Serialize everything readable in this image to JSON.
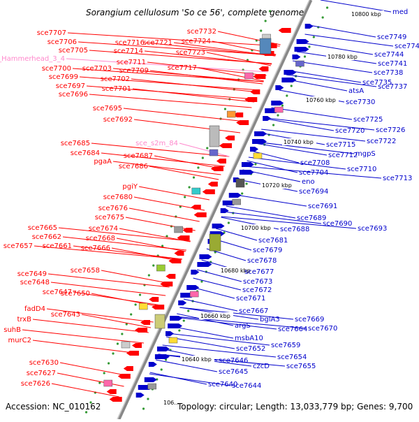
{
  "header": {
    "title": "Sorangium cellulosum 'So ce 56', complete genome"
  },
  "footer": {
    "accession": "Accession: NC_010162",
    "summary": "Topology: circular; Length: 13,033,779 bp; Genes: 9,700"
  },
  "colors": {
    "reverse_strand": "#ff0000",
    "forward_strand": "#0000cc",
    "rna": "#ff88cc",
    "backbone": "#888888"
  },
  "kbp_labels": [
    "10800 kbp",
    "10780 kbp",
    "10760 kbp",
    "10740 kbp",
    "10720 kbp",
    "10700 kbp",
    "10680 kbp",
    "10660 kbp",
    "10640 kbp",
    "106..."
  ],
  "left_genes": [
    "sce7707",
    "sce7706",
    "sce7705",
    "sce_Hammerhead_3_4",
    "sce7700",
    "sce7699",
    "sce7697",
    "sce7696",
    "sce7716",
    "sce7721",
    "sce7714",
    "sce7711",
    "sce7709",
    "sce7703",
    "sce7702",
    "sce7701",
    "sce7732",
    "sce7724",
    "sce7723",
    "sce7717",
    "sce7695",
    "sce7692",
    "sce7685",
    "sce7684",
    "pgaA",
    "sce_s2m_84",
    "sce7687",
    "sce7686",
    "pgiY",
    "sce7680",
    "sce7676",
    "sce7675",
    "sce7674",
    "sce7665",
    "sce7662",
    "sce7661",
    "sce7657",
    "sce7668",
    "sce7666",
    "sce7658",
    "sce7649",
    "sce7648",
    "sce7647",
    "sce7650",
    "fadD4",
    "sce7643",
    "trxB",
    "suhB",
    "murC2",
    "sce7630",
    "sce7627",
    "sce7626"
  ],
  "right_genes": [
    "med",
    "sce7749",
    "sce7748",
    "sce7744",
    "sce7741",
    "sce7738",
    "sce7735",
    "sce7737",
    "atsA",
    "sce7730",
    "sce7725",
    "sce7726",
    "sce7720",
    "sce7722",
    "sce7715",
    "mgpS",
    "sce7712",
    "sce7708",
    "sce7710",
    "sce7704",
    "sce7713",
    "eno",
    "sce7694",
    "sce7691",
    "sce7689",
    "sce7690",
    "sce7688",
    "sce7693",
    "sce7681",
    "sce7679",
    "sce7678",
    "sce7677",
    "sce7673",
    "sce7672",
    "sce7671",
    "sce7667",
    "sce7669",
    "bglA3",
    "sce7664",
    "sce7670",
    "argS",
    "sce7659",
    "msbA10",
    "sce7652",
    "sce7654",
    "czcD",
    "sce7655",
    "sce7646",
    "sce7645",
    "sce7640",
    "sce7644"
  ]
}
